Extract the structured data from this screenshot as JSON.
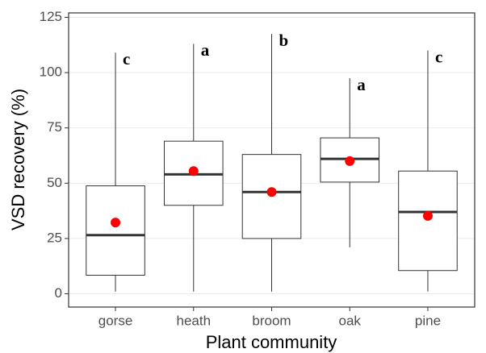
{
  "chart_data": {
    "type": "box",
    "x_label": "Plant community",
    "y_label": "VSD recovery (%)",
    "categories": [
      "gorse",
      "heath",
      "broom",
      "oak",
      "pine"
    ],
    "boxes": [
      {
        "low": 1,
        "q1": 8.4,
        "median": 26.5,
        "q3": 48.8,
        "high": 109,
        "mean": 32.2,
        "letter": "c"
      },
      {
        "low": 1,
        "q1": 40,
        "median": 54,
        "q3": 69,
        "high": 113,
        "mean": 55.5,
        "letter": "a"
      },
      {
        "low": 1,
        "q1": 25,
        "median": 46,
        "q3": 63,
        "high": 117.5,
        "mean": 46,
        "letter": "b"
      },
      {
        "low": 21,
        "q1": 50.5,
        "median": 61,
        "q3": 70.5,
        "high": 97.5,
        "mean": 60,
        "letter": "a"
      },
      {
        "low": 1,
        "q1": 10.5,
        "median": 37,
        "q3": 55.5,
        "high": 110,
        "mean": 35.2,
        "letter": "c"
      }
    ],
    "mean_color": "#ff0000",
    "box_color": "#333333",
    "ylim": [
      -6,
      127
    ],
    "yticks": [
      0,
      25,
      50,
      75,
      100,
      125
    ],
    "grid": true
  }
}
